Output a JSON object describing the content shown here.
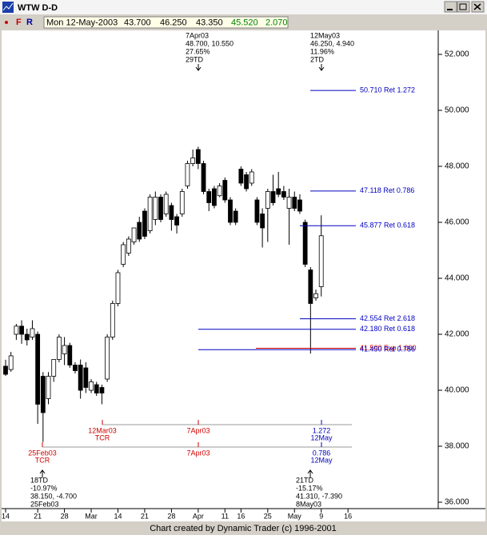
{
  "window_title": "WTW D-D",
  "toolbar": {
    "f": "F",
    "r": "R",
    "info": [
      "Mon 12-May-2003",
      "43.700",
      "46.250",
      "43.350",
      "45.520",
      "2.070"
    ]
  },
  "chart_data": {
    "type": "candlestick",
    "categories": [
      "14",
      null,
      null,
      null,
      null,
      null,
      "21",
      null,
      null,
      null,
      null,
      "28",
      null,
      null,
      null,
      null,
      "Mar",
      null,
      null,
      null,
      null,
      "14",
      null,
      null,
      null,
      null,
      "21",
      null,
      null,
      null,
      null,
      "28",
      null,
      null,
      null,
      null,
      "Apr",
      null,
      null,
      null,
      null,
      "11",
      null,
      null,
      "16",
      null,
      null,
      null,
      null,
      "25",
      null,
      null,
      null,
      null,
      "May",
      null,
      null,
      null,
      null,
      "9",
      null,
      null,
      null,
      null,
      "16"
    ],
    "open": [
      40.86,
      40.74,
      42.0,
      42.29,
      42.0,
      41.9,
      42.0,
      40.5,
      39.7,
      40.5,
      41.1,
      41.3,
      41.6,
      40.9,
      40.9,
      40.8,
      40.0,
      40.2,
      40.1,
      40.4,
      41.9,
      43.1,
      44.5,
      44.9,
      45.3,
      46.0,
      46.4,
      45.7,
      46.1,
      46.9,
      46.3,
      46.6,
      46.2,
      46.3,
      47.3,
      48.1,
      48.6,
      48.1,
      47.1,
      47.2,
      46.95,
      47.5,
      46.8,
      46.4,
      47.9,
      47.7,
      47.4,
      46.8,
      46.3,
      46.5,
      47.1,
      47.2,
      47.1,
      46.5,
      46.9,
      46.8,
      46.0,
      44.3,
      43.3,
      43.7,
      null,
      null,
      null,
      null,
      null
    ],
    "high": [
      41.09,
      41.37,
      42.37,
      42.5,
      42.2,
      42.5,
      42.1,
      40.65,
      40.65,
      41.1,
      42.0,
      41.9,
      41.7,
      41.0,
      41.1,
      41.0,
      40.4,
      40.3,
      40.2,
      42.0,
      43.2,
      44.3,
      45.3,
      45.5,
      45.8,
      46.2,
      46.5,
      47.0,
      47.1,
      47.0,
      47.1,
      46.7,
      46.3,
      47.2,
      48.2,
      48.6,
      48.7,
      48.2,
      47.2,
      47.3,
      47.4,
      47.6,
      46.9,
      46.5,
      48.0,
      47.8,
      47.9,
      46.9,
      46.5,
      47.2,
      47.7,
      47.8,
      47.3,
      47.2,
      47.1,
      47.0,
      46.1,
      44.4,
      43.6,
      46.25,
      null,
      null,
      null,
      null,
      null
    ],
    "low": [
      40.51,
      40.66,
      41.8,
      41.66,
      41.6,
      41.8,
      38.8,
      38.15,
      39.5,
      40.3,
      41.0,
      40.9,
      40.8,
      40.6,
      39.7,
      39.9,
      39.9,
      39.8,
      39.5,
      40.3,
      41.8,
      43.0,
      44.4,
      44.8,
      45.2,
      45.3,
      45.4,
      45.6,
      45.9,
      46.0,
      46.2,
      45.7,
      45.6,
      46.2,
      47.2,
      48.0,
      47.9,
      47.0,
      46.4,
      46.5,
      46.9,
      46.7,
      45.9,
      45.9,
      47.3,
      47.1,
      47.3,
      45.9,
      45.1,
      45.3,
      46.6,
      46.9,
      46.8,
      45.2,
      46.4,
      46.3,
      44.4,
      41.31,
      43.2,
      43.35,
      null,
      null,
      null,
      null,
      null
    ],
    "close": [
      40.57,
      41.23,
      42.29,
      42.0,
      41.8,
      42.2,
      39.5,
      39.2,
      40.5,
      41.1,
      41.9,
      41.6,
      40.9,
      40.7,
      40.0,
      40.1,
      40.3,
      39.9,
      39.9,
      41.9,
      43.1,
      44.2,
      45.2,
      45.4,
      45.8,
      45.4,
      45.5,
      46.9,
      46.9,
      46.1,
      47.0,
      46.1,
      45.9,
      47.1,
      48.1,
      48.3,
      48.1,
      47.1,
      46.7,
      46.6,
      47.3,
      46.8,
      46.0,
      46.0,
      47.4,
      47.2,
      47.8,
      46.0,
      45.8,
      47.1,
      46.7,
      47.0,
      46.9,
      46.9,
      46.5,
      46.4,
      44.5,
      43.1,
      43.45,
      45.52,
      null,
      null,
      null,
      null,
      null
    ],
    "up_color": "#ffffff",
    "down_color": "#000000",
    "ylim": [
      35.8,
      52.857
    ],
    "yticks": [
      {
        "value": 36,
        "label": "36.000"
      },
      {
        "value": 38,
        "label": "38.000"
      },
      {
        "value": 40,
        "label": "40.000"
      },
      {
        "value": 42,
        "label": "42.000"
      },
      {
        "value": 44,
        "label": "44.000"
      },
      {
        "value": 46,
        "label": "46.000"
      },
      {
        "value": 48,
        "label": "48.000"
      },
      {
        "value": 50,
        "label": "50.000"
      },
      {
        "value": 52,
        "label": "52.000"
      }
    ],
    "levels": [
      {
        "label": "50.710 Ret 1.272",
        "value": 50.71,
        "color": "#0000c0"
      },
      {
        "label": "47.118 Ret 0.786",
        "value": 47.118,
        "color": "#0000c0"
      },
      {
        "label": "45.877 Ret 0.618",
        "value": 45.877,
        "color": "#0000c0"
      },
      {
        "label": "42.554 Ret 2.618",
        "value": 42.554,
        "color": "#0000c0"
      },
      {
        "label": "42.180 Ret 0.618",
        "value": 42.18,
        "color": "#0000c0"
      },
      {
        "label": "41.500 Exp 1.000",
        "value": 41.5,
        "color": "#d00000"
      },
      {
        "label": "41.450 Ret 0.786",
        "value": 41.45,
        "color": "#0000c0"
      }
    ],
    "top_annotations": [
      {
        "lines": [
          "7Apr03",
          "48.700, 10.550",
          "27.65%",
          "29TD"
        ]
      },
      {
        "lines": [
          "12May03",
          "46.250, 4.940",
          "11.96%",
          "2TD"
        ]
      }
    ],
    "bottom_annotations": [
      {
        "lines": [
          "18TD",
          "-10.97%",
          "38.150, -4.700",
          "25Feb03"
        ]
      },
      {
        "lines": [
          "21TD",
          "-15.17%",
          "41.310, -7.390",
          "8May03"
        ]
      }
    ],
    "time_bars": [
      [
        {
          "lines": [
            "12Mar03",
            "TCR"
          ],
          "color": "#d00000"
        },
        {
          "lines": [
            "7Apr03"
          ],
          "color": "#d00000"
        },
        {
          "lines": [
            "1.272",
            "12May"
          ],
          "color": "#0000c0"
        }
      ],
      [
        {
          "lines": [
            "25Feb03",
            "TCR"
          ],
          "color": "#d00000"
        },
        {
          "lines": [
            "7Apr03"
          ],
          "color": "#d00000"
        },
        {
          "lines": [
            "0.786",
            "12May"
          ],
          "color": "#0000c0"
        }
      ]
    ],
    "footer": "Chart created by Dynamic Trader (c) 1996-2001"
  }
}
